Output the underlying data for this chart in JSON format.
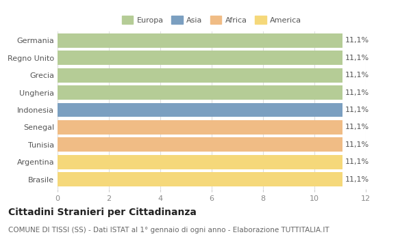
{
  "categories": [
    "Germania",
    "Regno Unito",
    "Grecia",
    "Ungheria",
    "Indonesia",
    "Senegal",
    "Tunisia",
    "Argentina",
    "Brasile"
  ],
  "values": [
    11.1,
    11.1,
    11.1,
    11.1,
    11.1,
    11.1,
    11.1,
    11.1,
    11.1
  ],
  "colors": [
    "#b5cc96",
    "#b5cc96",
    "#b5cc96",
    "#b5cc96",
    "#7b9fc0",
    "#f0bc85",
    "#f0bc85",
    "#f5d87a",
    "#f5d87a"
  ],
  "labels": [
    "11,1%",
    "11,1%",
    "11,1%",
    "11,1%",
    "11,1%",
    "11,1%",
    "11,1%",
    "11,1%",
    "11,1%"
  ],
  "legend_labels": [
    "Europa",
    "Asia",
    "Africa",
    "America"
  ],
  "legend_colors": [
    "#b5cc96",
    "#7b9fc0",
    "#f0bc85",
    "#f5d87a"
  ],
  "xlim": [
    0,
    12
  ],
  "xticks": [
    0,
    2,
    4,
    6,
    8,
    10,
    12
  ],
  "title": "Cittadini Stranieri per Cittadinanza",
  "subtitle": "COMUNE DI TISSI (SS) - Dati ISTAT al 1° gennaio di ogni anno - Elaborazione TUTTITALIA.IT",
  "background_color": "#ffffff",
  "grid_color": "#dddddd",
  "title_fontsize": 10,
  "subtitle_fontsize": 7.5,
  "label_fontsize": 8,
  "tick_fontsize": 8,
  "bar_height": 0.82
}
